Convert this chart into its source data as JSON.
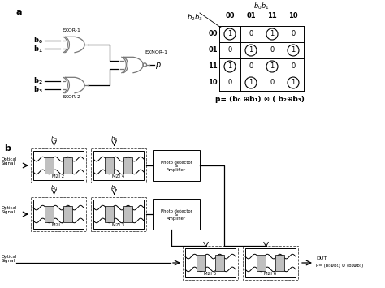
{
  "bg_color": "#ffffff",
  "line_color": "#000000",
  "gate_color": "#777777",
  "gray_fill": "#cccccc",
  "kmap_col_headers": [
    "00",
    "01",
    "11",
    "10"
  ],
  "kmap_row_headers": [
    "00",
    "01",
    "11",
    "10"
  ],
  "kmap_values": [
    [
      1,
      0,
      1,
      0
    ],
    [
      0,
      1,
      0,
      1
    ],
    [
      1,
      0,
      1,
      0
    ],
    [
      0,
      1,
      0,
      1
    ]
  ],
  "formula": "p= ( b₀ ⊕b₁) ⊙ ( b₂⊕b₃)",
  "output_label": "P= ( b₀⊕b₁) ⊙ (b₂⊕b₃)"
}
